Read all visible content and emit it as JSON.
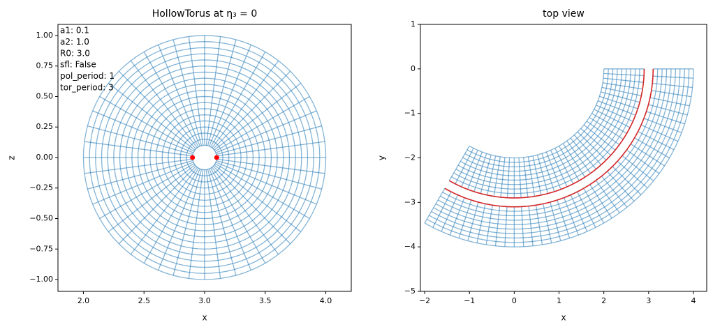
{
  "chart_data": [
    {
      "type": "polar_mesh",
      "title": "HollowTorus at η₃ = 0",
      "x_label": "x",
      "y_label": "z",
      "xlim": [
        1.79,
        4.21
      ],
      "ylim": [
        -1.097,
        1.091
      ],
      "xticks": [
        {
          "value": 2.0,
          "label": "2.0"
        },
        {
          "value": 2.5,
          "label": "2.5"
        },
        {
          "value": 3.0,
          "label": "3.0"
        },
        {
          "value": 3.5,
          "label": "3.5"
        },
        {
          "value": 4.0,
          "label": "4.0"
        }
      ],
      "yticks": [
        {
          "value": -1.0,
          "label": "−1.00"
        },
        {
          "value": -0.75,
          "label": "−0.75"
        },
        {
          "value": -0.5,
          "label": "−0.50"
        },
        {
          "value": -0.25,
          "label": "−0.25"
        },
        {
          "value": 0,
          "label": "0.00"
        },
        {
          "value": 0.25,
          "label": "0.25"
        },
        {
          "value": 0.5,
          "label": "0.50"
        },
        {
          "value": 0.75,
          "label": "0.75"
        },
        {
          "value": 1.0,
          "label": "1.00"
        }
      ],
      "text_box": [
        "a1: 0.1",
        "a2: 1.0",
        "R0: 3.0",
        "sfl: False",
        "pol_period: 1",
        "tor_period: 3"
      ],
      "mesh": {
        "center_x": 3.0,
        "r_min": 0.1,
        "r_max": 1.0,
        "n_rings": 19,
        "n_spokes": 48,
        "color": "#1f77b4"
      },
      "points": {
        "x": [
          2.9,
          3.1
        ],
        "y": [
          0,
          0
        ],
        "color": "#ff0000"
      }
    },
    {
      "type": "top_view",
      "title": "top view",
      "x_label": "x",
      "y_label": "y",
      "xlim": [
        -2.094,
        4.296
      ],
      "ylim": [
        -5,
        1
      ],
      "xticks": [
        {
          "value": -2,
          "label": "−2"
        },
        {
          "value": -1,
          "label": "−1"
        },
        0,
        1,
        2,
        3,
        4
      ],
      "yticks": [
        {
          "value": -5,
          "label": "−5"
        },
        {
          "value": -4,
          "label": "−4"
        },
        {
          "value": -3,
          "label": "−3"
        },
        {
          "value": -2,
          "label": "−2"
        },
        {
          "value": -1,
          "label": "−1"
        },
        0,
        1
      ],
      "mesh": {
        "R0": 3.0,
        "r_min": 0.1,
        "r_max": 1.0,
        "angle_start": 0,
        "angle_end": -120,
        "n_rings": 10,
        "n_spokes": 41,
        "color": "#1f77b4"
      },
      "boundary": {
        "radii": [
          2.9,
          3.1
        ],
        "color": "#d62728"
      }
    }
  ]
}
